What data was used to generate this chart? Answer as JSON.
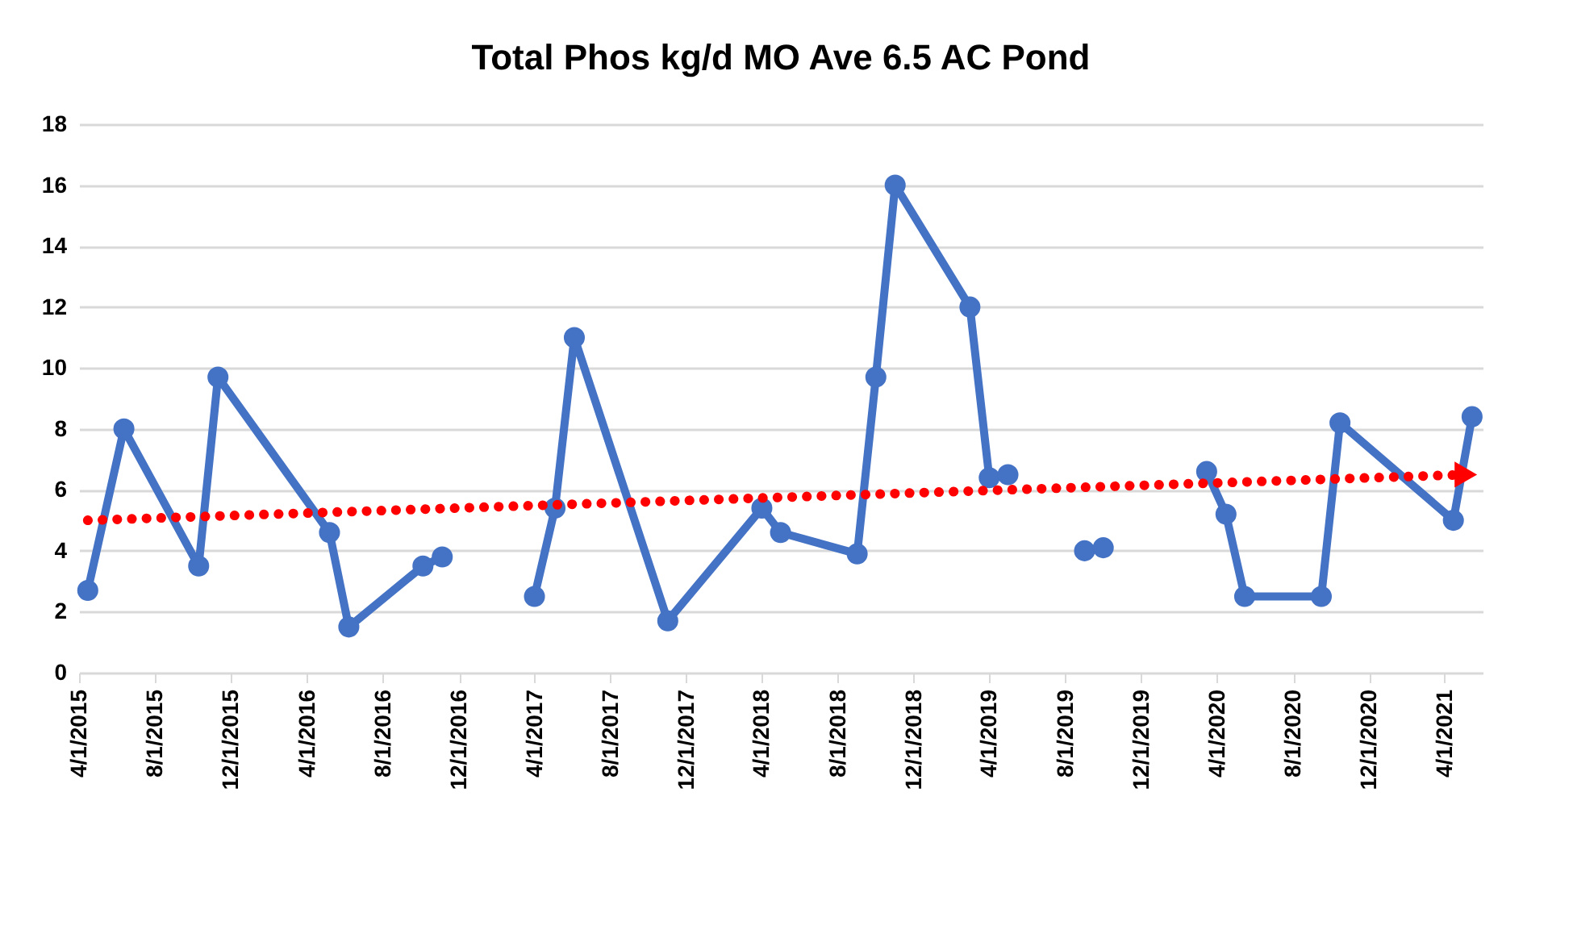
{
  "chart_data": {
    "type": "line",
    "title": "Total Phos kg/d MO Ave 6.5 AC Pond",
    "x": [
      "2015-04-15",
      "2015-06-12",
      "2015-10-10",
      "2015-11-10",
      "2016-05-07",
      "2016-06-07",
      "2016-10-04",
      "2016-11-04",
      "2017-01-15",
      "2017-04-01",
      "2017-05-04",
      "2017-06-04",
      "2017-11-01",
      "2018-04-01",
      "2018-05-01",
      "2018-09-01",
      "2018-10-01",
      "2018-11-01",
      "2019-03-01",
      "2019-04-01",
      "2019-05-01",
      "2019-07-01",
      "2019-09-01",
      "2019-10-01",
      "2020-01-01",
      "2020-03-15",
      "2020-04-15",
      "2020-05-15",
      "2020-09-15",
      "2020-10-15",
      "2021-04-15",
      "2021-05-15"
    ],
    "series": [
      {
        "color": "#4472c4",
        "marker": "circle",
        "line_style": "solid",
        "values": [
          2.7,
          8.0,
          3.5,
          9.7,
          4.6,
          1.5,
          3.5,
          3.8,
          null,
          2.5,
          5.4,
          11.0,
          1.7,
          5.4,
          4.6,
          3.9,
          9.7,
          16.0,
          12.0,
          6.4,
          6.5,
          null,
          4.0,
          4.1,
          null,
          6.6,
          5.2,
          2.5,
          2.5,
          8.2,
          5.0,
          8.4
        ]
      },
      {
        "type": "line",
        "color": "#ff0000",
        "line_style": "dotted",
        "x": [
          "2015-04-15",
          "2021-05-05"
        ],
        "values": [
          5.0,
          6.5
        ]
      }
    ],
    "xlim": [
      "2015-04-01",
      "2021-06-01"
    ],
    "xticks": [
      {
        "value": "2015-04-01",
        "label": "4/1/2015"
      },
      {
        "value": "2015-08-01",
        "label": "8/1/2015"
      },
      {
        "value": "2015-12-01",
        "label": "12/1/2015"
      },
      {
        "value": "2016-04-01",
        "label": "4/1/2016"
      },
      {
        "value": "2016-08-01",
        "label": "8/1/2016"
      },
      {
        "value": "2016-12-01",
        "label": "12/1/2016"
      },
      {
        "value": "2017-04-01",
        "label": "4/1/2017"
      },
      {
        "value": "2017-08-01",
        "label": "8/1/2017"
      },
      {
        "value": "2017-12-01",
        "label": "12/1/2017"
      },
      {
        "value": "2018-04-01",
        "label": "4/1/2018"
      },
      {
        "value": "2018-08-01",
        "label": "8/1/2018"
      },
      {
        "value": "2018-12-01",
        "label": "12/1/2018"
      },
      {
        "value": "2019-04-01",
        "label": "4/1/2019"
      },
      {
        "value": "2019-08-01",
        "label": "8/1/2019"
      },
      {
        "value": "2019-12-01",
        "label": "12/1/2019"
      },
      {
        "value": "2020-04-01",
        "label": "4/1/2020"
      },
      {
        "value": "2020-08-01",
        "label": "8/1/2020"
      },
      {
        "value": "2020-12-01",
        "label": "12/1/2020"
      },
      {
        "value": "2021-04-01",
        "label": "4/1/2021"
      }
    ],
    "ylim": [
      0,
      18
    ],
    "yticks": [
      0,
      2,
      4,
      6,
      8,
      10,
      12,
      14,
      16,
      18
    ],
    "grid": "y"
  }
}
